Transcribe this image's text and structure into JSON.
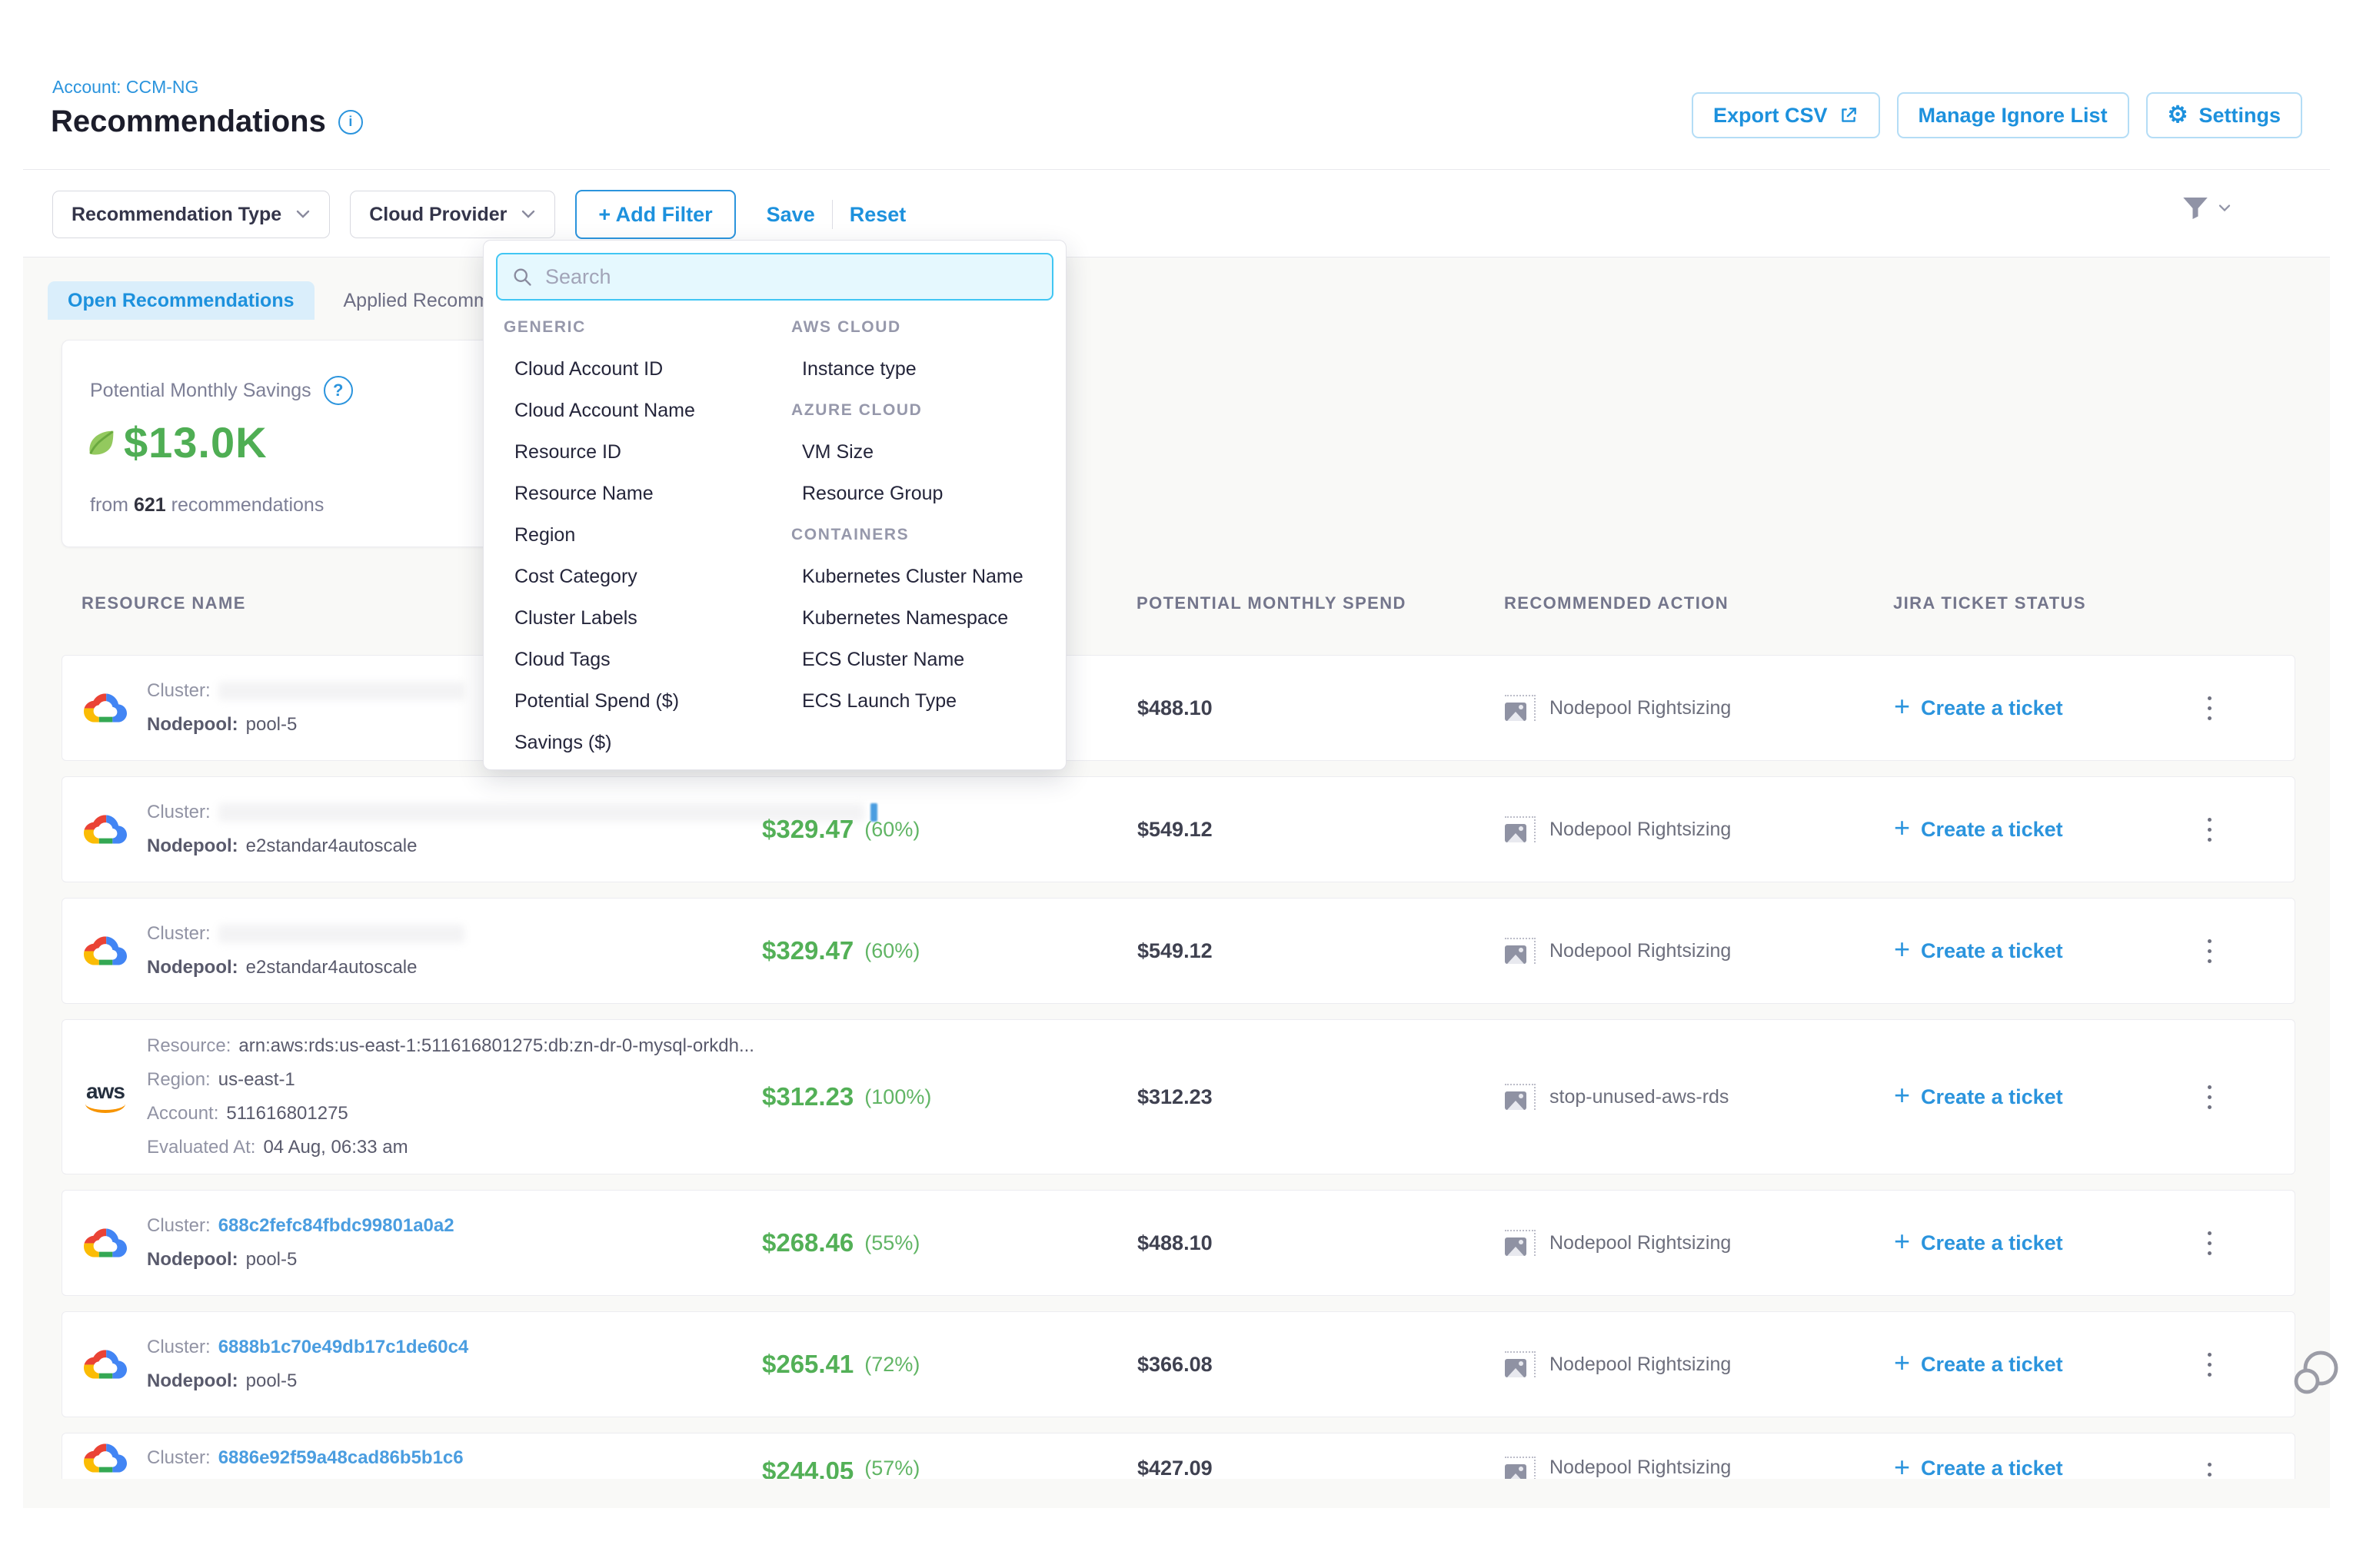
{
  "page": {
    "account_breadcrumb": "Account: CCM-NG",
    "title": "Recommendations"
  },
  "header_actions": {
    "export_csv": "Export CSV",
    "manage_ignore_list": "Manage Ignore List",
    "settings": "Settings"
  },
  "filter_bar": {
    "recommendation_type": "Recommendation Type",
    "cloud_provider": "Cloud Provider",
    "add_filter": "+ Add Filter",
    "save": "Save",
    "reset": "Reset"
  },
  "filter_dropdown": {
    "search_placeholder": "Search",
    "columns": [
      {
        "entries": [
          {
            "kind": "header",
            "label": "GENERIC"
          },
          {
            "kind": "item",
            "label": "Cloud Account ID"
          },
          {
            "kind": "item",
            "label": "Cloud Account Name"
          },
          {
            "kind": "item",
            "label": "Resource ID"
          },
          {
            "kind": "item",
            "label": "Resource Name"
          },
          {
            "kind": "item",
            "label": "Region"
          },
          {
            "kind": "item",
            "label": "Cost Category"
          },
          {
            "kind": "item",
            "label": "Cluster Labels"
          },
          {
            "kind": "item",
            "label": "Cloud Tags"
          },
          {
            "kind": "item",
            "label": "Potential Spend ($)"
          },
          {
            "kind": "item",
            "label": "Savings ($)"
          }
        ]
      },
      {
        "entries": [
          {
            "kind": "header",
            "label": "AWS CLOUD"
          },
          {
            "kind": "item",
            "label": "Instance type"
          },
          {
            "kind": "header",
            "label": "AZURE CLOUD"
          },
          {
            "kind": "item",
            "label": "VM Size"
          },
          {
            "kind": "item",
            "label": "Resource Group"
          },
          {
            "kind": "header",
            "label": "CONTAINERS"
          },
          {
            "kind": "item",
            "label": "Kubernetes Cluster Name"
          },
          {
            "kind": "item",
            "label": "Kubernetes Namespace"
          },
          {
            "kind": "item",
            "label": "ECS Cluster Name"
          },
          {
            "kind": "item",
            "label": "ECS Launch Type"
          }
        ]
      }
    ]
  },
  "tabs": {
    "open": "Open Recommendations",
    "applied": "Applied Recommendations"
  },
  "savings_card": {
    "title": "Potential Monthly Savings",
    "amount": "$13.0K",
    "from_text": "from",
    "count": "621",
    "recommendations_text": "recommendations"
  },
  "table": {
    "headers": {
      "resource_name": "RESOURCE NAME",
      "potential_monthly_spend": "POTENTIAL MONTHLY SPEND",
      "recommended_action": "RECOMMENDED ACTION",
      "jira_ticket_status": "JIRA TICKET STATUS"
    },
    "create_ticket_label": "Create a ticket",
    "rows": [
      {
        "provider": "gcp",
        "lines": [
          {
            "label": "Cluster:",
            "value": "",
            "redacted": true
          },
          {
            "label": "Nodepool:",
            "value": "pool-5",
            "strong_label": true
          }
        ],
        "savings": null,
        "spend": "$488.10",
        "action": "Nodepool Rightsizing"
      },
      {
        "provider": "gcp",
        "lines": [
          {
            "label": "Cluster:",
            "value": "",
            "redacted": true,
            "fragment": true
          },
          {
            "label": "Nodepool:",
            "value": "e2standar4autoscale",
            "strong_label": true
          }
        ],
        "savings": {
          "amount": "$329.47",
          "pct": "(60%)"
        },
        "spend": "$549.12",
        "action": "Nodepool Rightsizing"
      },
      {
        "provider": "gcp",
        "lines": [
          {
            "label": "Cluster:",
            "value": "",
            "redacted": true
          },
          {
            "label": "Nodepool:",
            "value": "e2standar4autoscale",
            "strong_label": true
          }
        ],
        "savings": {
          "amount": "$329.47",
          "pct": "(60%)"
        },
        "spend": "$549.12",
        "action": "Nodepool Rightsizing"
      },
      {
        "provider": "aws",
        "tall": true,
        "lines": [
          {
            "label": "Resource:",
            "value": "arn:aws:rds:us-east-1:511616801275:db:zn-dr-0-mysql-orkdh..."
          },
          {
            "label": "Region:",
            "value": "us-east-1"
          },
          {
            "label": "Account:",
            "value": "511616801275"
          },
          {
            "label": "Evaluated At:",
            "value": "04 Aug, 06:33 am"
          }
        ],
        "savings": {
          "amount": "$312.23",
          "pct": "(100%)"
        },
        "spend": "$312.23",
        "action": "stop-unused-aws-rds"
      },
      {
        "provider": "gcp",
        "lines": [
          {
            "label": "Cluster:",
            "value": "688c2fefc84fbdc99801a0a2",
            "link": true
          },
          {
            "label": "Nodepool:",
            "value": "pool-5",
            "strong_label": true
          }
        ],
        "savings": {
          "amount": "$268.46",
          "pct": "(55%)"
        },
        "spend": "$488.10",
        "action": "Nodepool Rightsizing"
      },
      {
        "provider": "gcp",
        "lines": [
          {
            "label": "Cluster:",
            "value": "6888b1c70e49db17c1de60c4",
            "link": true
          },
          {
            "label": "Nodepool:",
            "value": "pool-5",
            "strong_label": true
          }
        ],
        "savings": {
          "amount": "$265.41",
          "pct": "(72%)"
        },
        "spend": "$366.08",
        "action": "Nodepool Rightsizing"
      },
      {
        "provider": "gcp",
        "clipped": true,
        "lines": [
          {
            "label": "Cluster:",
            "value": "6886e92f59a48cad86b5b1c6",
            "link": true
          }
        ],
        "savings": {
          "amount": "$244.05",
          "pct": "(57%)"
        },
        "spend": "$427.09",
        "action": "Nodepool Rightsizing"
      }
    ]
  },
  "icons": {
    "settings_gear": "⚙",
    "plus": "+",
    "aws_logo_text": "aws"
  },
  "colors": {
    "accent_blue": "#2b94dd",
    "link_blue": "#4a9de0",
    "savings_green": "#53b057",
    "amount_green": "#4fae54",
    "search_border_blue": "#40c6f3",
    "content_background": "#f9f9f7"
  }
}
